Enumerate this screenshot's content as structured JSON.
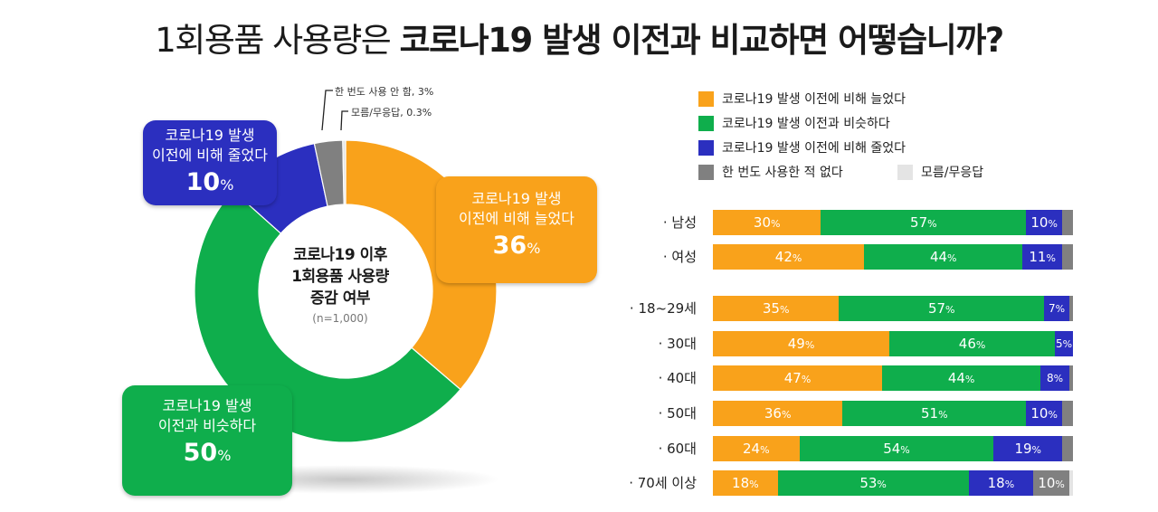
{
  "title": {
    "part1": "1회용품 사용량은 ",
    "part2": "코로나19 발생 이전과 비교하면 어떻습니까?"
  },
  "colors": {
    "increase": "#f9a21b",
    "same": "#0fae4c",
    "decrease": "#2b2fbf",
    "never": "#808080",
    "unknown": "#e4e4e4"
  },
  "donut": {
    "center_lines": [
      "코로나19 이후",
      "1회용품 사용량",
      "증감 여부"
    ],
    "n_label": "(n=1,000)",
    "callouts": {
      "decrease": {
        "lines": [
          "코로나19 발생",
          "이전에 비해 줄었다"
        ],
        "value": "10",
        "unit": "%"
      },
      "increase": {
        "lines": [
          "코로나19 발생",
          "이전에 비해 늘었다"
        ],
        "value": "36",
        "unit": "%"
      },
      "same": {
        "lines": [
          "코로나19 발생",
          "이전과 비슷하다"
        ],
        "value": "50",
        "unit": "%"
      }
    },
    "small_labels": {
      "never": "한 번도 사용 안 함, 3%",
      "unknown": "모름/무응답, 0.3%"
    }
  },
  "legend": [
    {
      "key": "increase",
      "label": "코로나19 발생 이전에 비해 늘었다"
    },
    {
      "key": "same",
      "label": "코로나19 발생 이전과 비슷하다"
    },
    {
      "key": "decrease",
      "label": "코로나19 발생 이전에 비해 줄었다"
    },
    {
      "key": "never",
      "label": "한 번도 사용한 적 없다"
    },
    {
      "key": "unknown",
      "label": "모름/무응답"
    }
  ],
  "chart_data": [
    {
      "type": "pie",
      "variant": "donut",
      "title": "코로나19 이후 1회용품 사용량 증감 여부",
      "note": "(n=1,000)",
      "categories": [
        "코로나19 발생 이전에 비해 늘었다",
        "코로나19 발생 이전과 비슷하다",
        "코로나19 발생 이전에 비해 줄었다",
        "한 번도 사용 안 함",
        "모름/무응답"
      ],
      "values": [
        36,
        50,
        10,
        3,
        0.3
      ]
    },
    {
      "type": "bar",
      "orientation": "horizontal",
      "stacked": true,
      "normalized": true,
      "categories": [
        "남성",
        "여성",
        "18~29세",
        "30대",
        "40대",
        "50대",
        "60대",
        "70세 이상"
      ],
      "series": [
        {
          "name": "코로나19 발생 이전에 비해 늘었다",
          "values": [
            30,
            42,
            35,
            49,
            47,
            36,
            24,
            18
          ]
        },
        {
          "name": "코로나19 발생 이전과 비슷하다",
          "values": [
            57,
            44,
            57,
            46,
            44,
            51,
            54,
            53
          ]
        },
        {
          "name": "코로나19 발생 이전에 비해 줄었다",
          "values": [
            10,
            11,
            7,
            5,
            8,
            10,
            19,
            18
          ]
        },
        {
          "name": "한 번도 사용한 적 없다",
          "values": [
            3,
            3,
            1,
            0,
            1,
            3,
            3,
            10
          ]
        },
        {
          "name": "모름/무응답",
          "values": [
            0,
            0,
            0,
            0,
            0,
            0,
            0,
            1
          ]
        }
      ],
      "legend_position": "top"
    }
  ]
}
